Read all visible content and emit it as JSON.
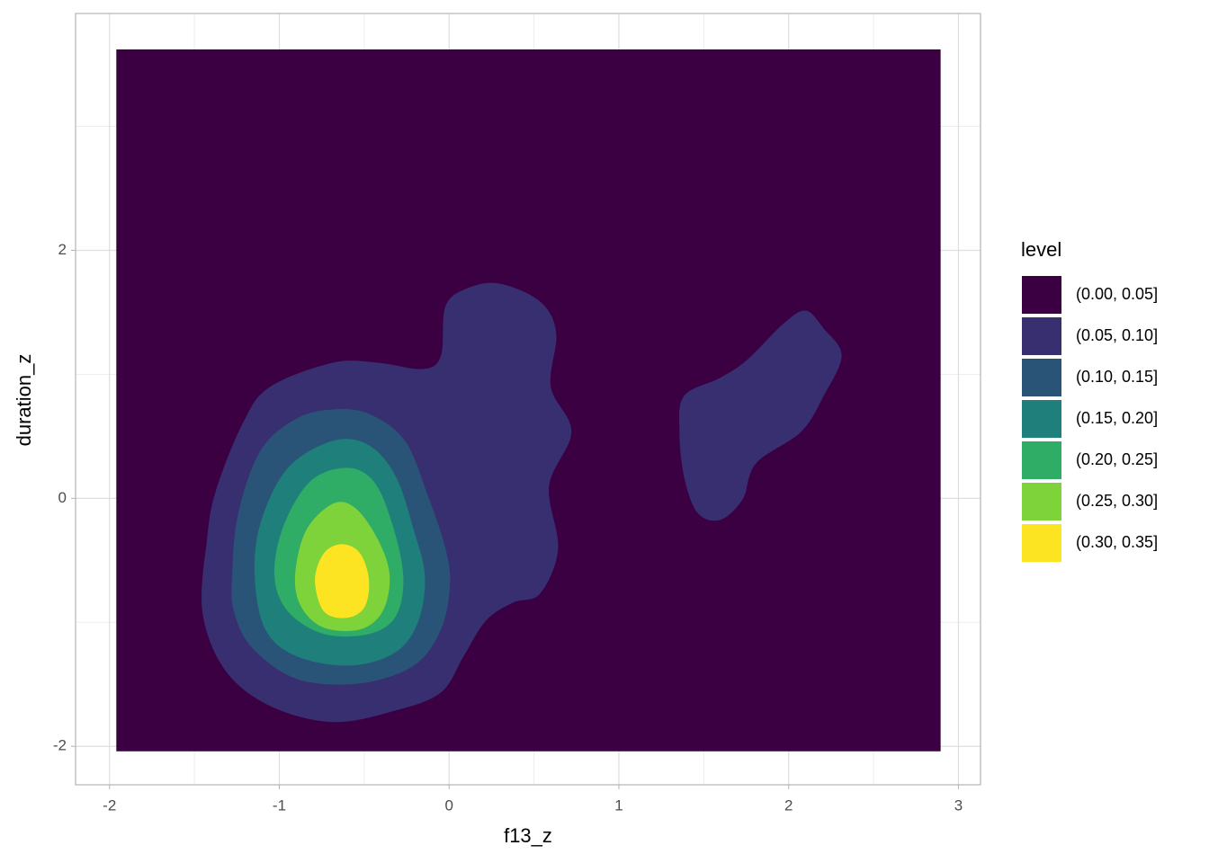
{
  "chart_data": {
    "type": "contour",
    "x_label": "f13_z",
    "y_label": "duration_z",
    "legend_title": "level",
    "xlim": [
      -2.2,
      3.13
    ],
    "ylim": [
      -2.31,
      3.91
    ],
    "xticks": [
      -2,
      -1,
      0,
      1,
      2,
      3
    ],
    "yticks": [
      -2,
      0,
      2
    ],
    "xminor": [
      -1.5,
      -0.5,
      0.5,
      1.5,
      2.5
    ],
    "yminor": [
      -1,
      1,
      3
    ],
    "grid": true,
    "series": [
      {
        "name": "(0.00, 0.05]",
        "color": "#3a0042",
        "regions": [
          {
            "x": [
              -1.96,
              2.895,
              2.895,
              -1.96
            ],
            "y": [
              3.62,
              3.62,
              -2.04,
              -2.04
            ]
          }
        ]
      },
      {
        "name": "(0.05, 0.10]",
        "color": "#382f71",
        "regions": [
          {
            "x": [
              -1.426,
              -1.373,
              -1.214,
              -1.055,
              -0.684,
              -0.419,
              -0.154,
              -0.048,
              -0.021,
              0.111,
              0.297,
              0.536,
              0.631,
              0.599,
              0.721,
              0.589,
              0.642,
              0.536,
              0.376,
              0.217,
              0.085,
              -0.048,
              -0.313,
              -0.684,
              -1.055,
              -1.32,
              -1.453
            ],
            "y": [
              -0.333,
              0.065,
              0.609,
              0.899,
              1.094,
              1.094,
              1.043,
              1.152,
              1.551,
              1.696,
              1.732,
              1.587,
              1.333,
              0.899,
              0.536,
              0.101,
              -0.406,
              -0.768,
              -0.841,
              -0.986,
              -1.275,
              -1.565,
              -1.71,
              -1.804,
              -1.674,
              -1.384,
              -0.913
            ]
          },
          {
            "x": [
              1.384,
              1.596,
              1.755,
              1.967,
              2.1,
              2.206,
              2.312,
              2.206,
              2.073,
              1.808,
              1.729,
              1.596,
              1.463,
              1.384,
              1.357
            ],
            "y": [
              0.826,
              0.971,
              1.116,
              1.406,
              1.514,
              1.37,
              1.152,
              0.826,
              0.536,
              0.283,
              -0.007,
              -0.174,
              -0.116,
              0.174,
              0.536
            ]
          }
        ]
      },
      {
        "name": "(0.10, 0.15]",
        "color": "#2a5477",
        "regions": [
          {
            "x": [
              -1.278,
              -1.241,
              -1.108,
              -0.896,
              -0.684,
              -0.472,
              -0.26,
              -0.127,
              -0.021,
              0.005,
              -0.048,
              -0.207,
              -0.525,
              -0.896,
              -1.161,
              -1.267
            ],
            "y": [
              -0.623,
              -0.116,
              0.391,
              0.645,
              0.717,
              0.681,
              0.464,
              0.029,
              -0.406,
              -0.696,
              -1.058,
              -1.348,
              -1.493,
              -1.457,
              -1.203,
              -0.913
            ]
          }
        ]
      },
      {
        "name": "(0.15, 0.20]",
        "color": "#1f7f7a",
        "regions": [
          {
            "x": [
              -1.145,
              -1.108,
              -0.949,
              -0.684,
              -0.472,
              -0.313,
              -0.207,
              -0.143,
              -0.18,
              -0.313,
              -0.578,
              -0.896,
              -1.082
            ],
            "y": [
              -0.623,
              -0.188,
              0.246,
              0.464,
              0.428,
              0.174,
              -0.261,
              -0.623,
              -0.986,
              -1.239,
              -1.348,
              -1.275,
              -1.058
            ]
          }
        ]
      },
      {
        "name": "(0.20, 0.25]",
        "color": "#2fac66",
        "regions": [
          {
            "x": [
              -1.029,
              -0.976,
              -0.817,
              -0.604,
              -0.445,
              -0.339,
              -0.27,
              -0.313,
              -0.472,
              -0.737,
              -0.949
            ],
            "y": [
              -0.623,
              -0.225,
              0.138,
              0.246,
              0.138,
              -0.188,
              -0.623,
              -0.949,
              -1.094,
              -1.094,
              -0.913
            ]
          }
        ]
      },
      {
        "name": "(0.25, 0.30]",
        "color": "#7ed33a",
        "regions": [
          {
            "x": [
              -0.907,
              -0.843,
              -0.684,
              -0.551,
              -0.419,
              -0.35,
              -0.392,
              -0.525,
              -0.737,
              -0.87
            ],
            "y": [
              -0.623,
              -0.261,
              -0.043,
              -0.08,
              -0.333,
              -0.623,
              -0.913,
              -1.058,
              -1.043,
              -0.877
            ]
          }
        ]
      },
      {
        "name": "(0.30, 0.35]",
        "color": "#fde422",
        "regions": [
          {
            "x": [
              -0.79,
              -0.737,
              -0.631,
              -0.525,
              -0.472,
              -0.498,
              -0.604,
              -0.737
            ],
            "y": [
              -0.659,
              -0.442,
              -0.37,
              -0.442,
              -0.659,
              -0.877,
              -0.964,
              -0.913
            ]
          }
        ]
      }
    ]
  }
}
